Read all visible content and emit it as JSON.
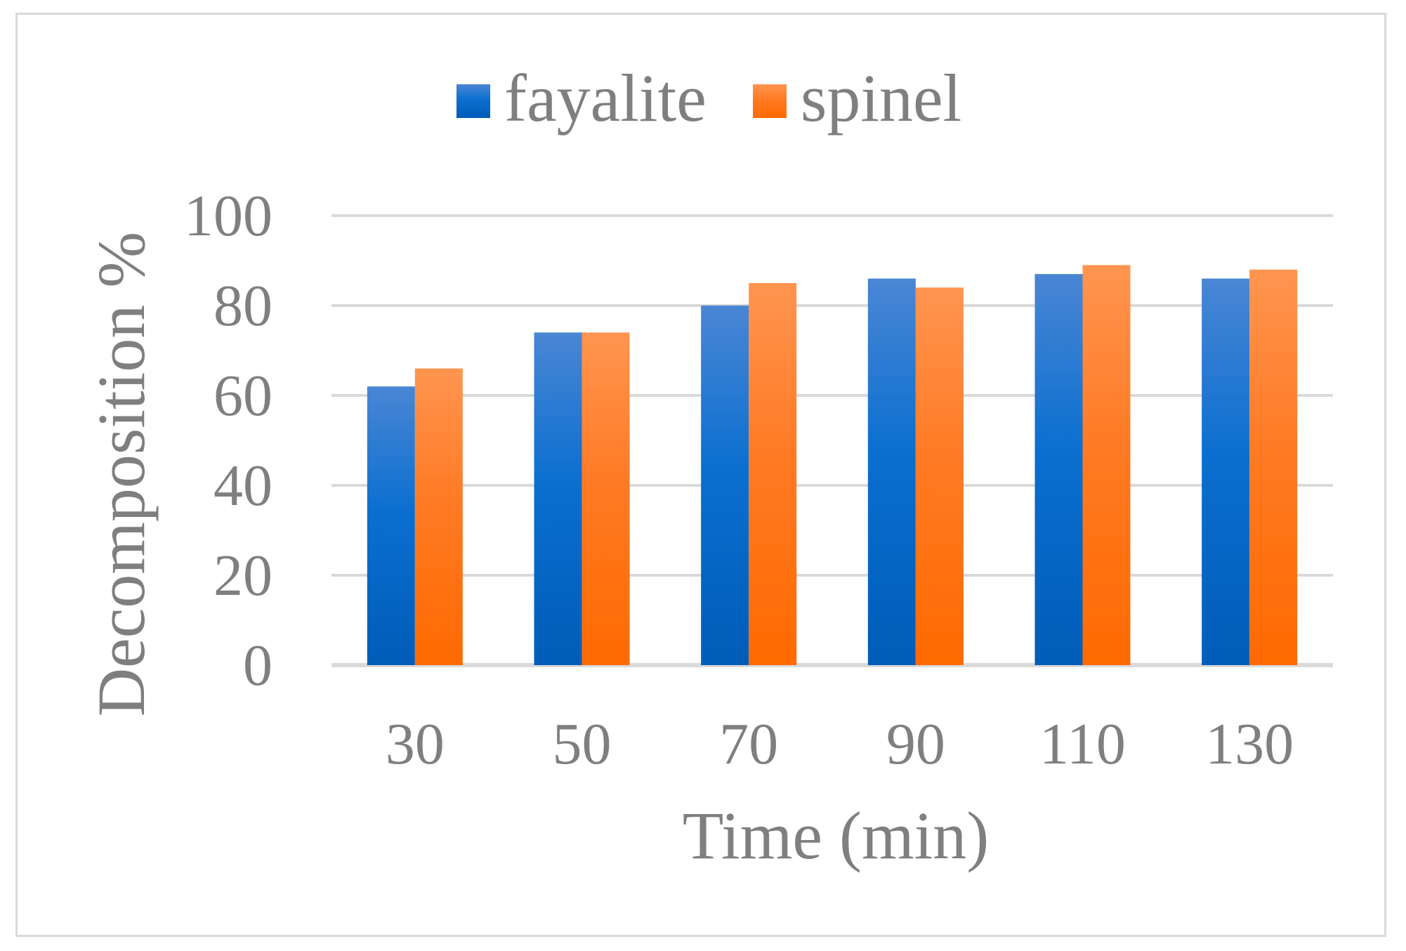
{
  "chart_data": {
    "type": "bar",
    "title": "",
    "xlabel": "Time (min)",
    "ylabel": "Decomposition %",
    "categories": [
      "30",
      "50",
      "70",
      "90",
      "110",
      "130"
    ],
    "series": [
      {
        "name": "fayalite",
        "values": [
          62,
          74,
          80,
          86,
          87,
          86
        ],
        "color": "#0066cc"
      },
      {
        "name": "spinel",
        "values": [
          66,
          74,
          85,
          84,
          89,
          88
        ],
        "color": "#ff7014"
      }
    ],
    "ylim": [
      0,
      100
    ],
    "yticks": [
      "0",
      "20",
      "40",
      "60",
      "80",
      "100"
    ],
    "grid": true,
    "legend_position": "top"
  }
}
